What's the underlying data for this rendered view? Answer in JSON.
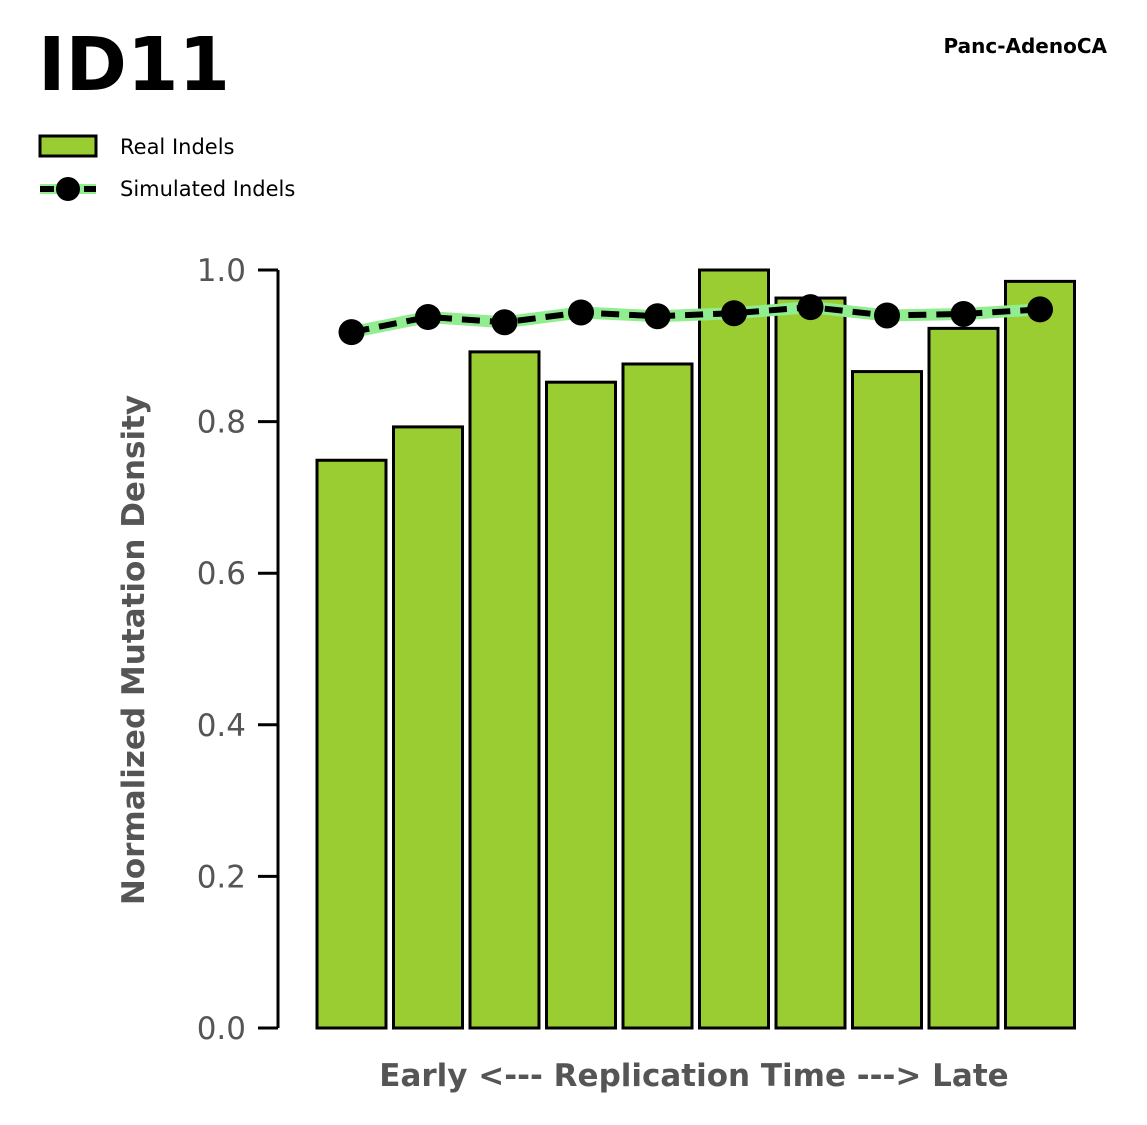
{
  "header": {
    "title": "ID11",
    "tissue": "Panc-AdenoCA"
  },
  "colors": {
    "bar_fill": "#9ACD32",
    "bar_edge": "#000000",
    "sim_line": "#000000",
    "sim_halo": "#90EE90",
    "axis_text": "#555555"
  },
  "chart_data": {
    "type": "bar",
    "xlabel": "Early <--- Replication Time ---> Late",
    "ylabel": "Normalized Mutation Density",
    "ylim": [
      0,
      1.0
    ],
    "yticks": [
      "0.0",
      "0.2",
      "0.4",
      "0.6",
      "0.8",
      "1.0"
    ],
    "grid": false,
    "legend_position": "top-left",
    "series": [
      {
        "name": "Real Indels",
        "kind": "bar",
        "values": [
          0.749,
          0.793,
          0.892,
          0.852,
          0.876,
          1.0,
          0.963,
          0.866,
          0.923,
          0.985
        ]
      },
      {
        "name": "Simulated Indels",
        "kind": "line",
        "values": [
          0.918,
          0.938,
          0.931,
          0.944,
          0.939,
          0.943,
          0.951,
          0.94,
          0.942,
          0.948
        ]
      }
    ]
  }
}
